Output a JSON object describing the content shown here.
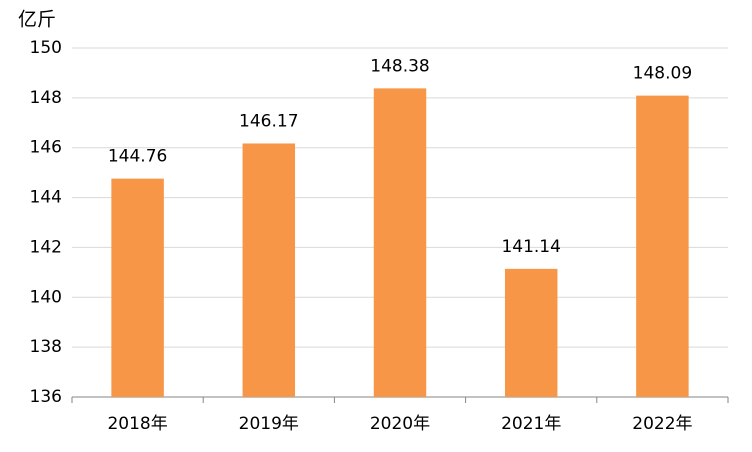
{
  "chart_data": {
    "type": "bar",
    "ylabel": "亿斤",
    "categories": [
      "2018年",
      "2019年",
      "2020年",
      "2021年",
      "2022年"
    ],
    "values": [
      144.76,
      146.17,
      148.38,
      141.14,
      148.09
    ],
    "color": "#f79646",
    "ylim": [
      136,
      150
    ],
    "yticks": [
      136,
      138,
      140,
      142,
      144,
      146,
      148,
      150
    ],
    "grid": true
  }
}
